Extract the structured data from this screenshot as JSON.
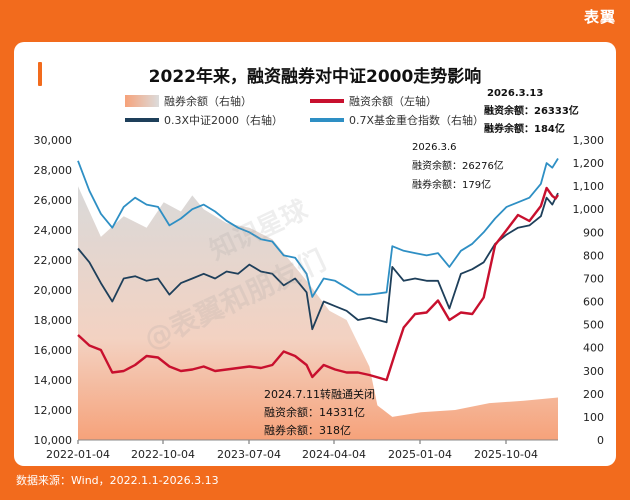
{
  "brand": "表翼",
  "title": "2022年来，融资融券对中证2000走势影响",
  "source": "数据来源：Wind，2022.1.1-2026.3.13",
  "watermark": [
    "知识星球",
    "@表翼和朋友们"
  ],
  "colors": {
    "background": "#f26b1d",
    "financing": "#c8102e",
    "index": "#1e3f5a",
    "fund": "#2e8fc4",
    "securities_top": "#d7d7d7",
    "securities_bottom": "#f6a27a"
  },
  "chart_data": {
    "type": "line",
    "legend": [
      {
        "key": "securities",
        "label": "融券余额（右轴）"
      },
      {
        "key": "financing",
        "label": "融资余额（左轴）"
      },
      {
        "key": "index",
        "label": "0.3X中证2000（右轴）"
      },
      {
        "key": "fund",
        "label": "0.7X基金重仓指数（右轴）"
      }
    ],
    "x_ticks": [
      "2022-01-04",
      "2022-10-04",
      "2023-07-04",
      "2024-04-04",
      "2025-01-04",
      "2025-10-04"
    ],
    "y_left": {
      "ticks": [
        "10,000",
        "12,000",
        "14,000",
        "16,000",
        "18,000",
        "20,000",
        "22,000",
        "24,000",
        "26,000",
        "28,000",
        "30,000"
      ],
      "range": [
        10000,
        30000
      ]
    },
    "y_right": {
      "ticks": [
        "0",
        "100",
        "200",
        "300",
        "400",
        "500",
        "600",
        "700",
        "800",
        "900",
        "1,000",
        "1,100",
        "1,200",
        "1,300"
      ],
      "range": [
        0,
        1300
      ]
    },
    "series": [
      {
        "key": "financing",
        "name": "融资余额（左轴）",
        "axis": "left",
        "values": [
          [
            2022.0,
            17000
          ],
          [
            2022.1,
            16300
          ],
          [
            2022.2,
            16000
          ],
          [
            2022.3,
            14500
          ],
          [
            2022.4,
            14600
          ],
          [
            2022.5,
            15000
          ],
          [
            2022.6,
            15600
          ],
          [
            2022.7,
            15500
          ],
          [
            2022.8,
            14900
          ],
          [
            2022.9,
            14600
          ],
          [
            2023.0,
            14700
          ],
          [
            2023.1,
            14900
          ],
          [
            2023.2,
            14600
          ],
          [
            2023.3,
            14700
          ],
          [
            2023.4,
            14800
          ],
          [
            2023.5,
            14900
          ],
          [
            2023.6,
            14800
          ],
          [
            2023.7,
            15000
          ],
          [
            2023.8,
            15900
          ],
          [
            2023.9,
            15600
          ],
          [
            2024.0,
            15000
          ],
          [
            2024.05,
            14200
          ],
          [
            2024.15,
            15000
          ],
          [
            2024.25,
            14700
          ],
          [
            2024.35,
            14500
          ],
          [
            2024.45,
            14500
          ],
          [
            2024.55,
            14331
          ],
          [
            2024.7,
            14000
          ],
          [
            2024.78,
            15900
          ],
          [
            2024.85,
            17500
          ],
          [
            2024.95,
            18400
          ],
          [
            2025.05,
            18500
          ],
          [
            2025.15,
            19300
          ],
          [
            2025.25,
            18000
          ],
          [
            2025.35,
            18500
          ],
          [
            2025.45,
            18400
          ],
          [
            2025.55,
            19500
          ],
          [
            2025.65,
            23000
          ],
          [
            2025.75,
            24000
          ],
          [
            2025.85,
            25000
          ],
          [
            2025.95,
            24600
          ],
          [
            2026.05,
            25600
          ],
          [
            2026.1,
            26800
          ],
          [
            2026.15,
            26276
          ],
          [
            2026.18,
            26100
          ],
          [
            2026.2,
            26333
          ]
        ]
      },
      {
        "key": "index",
        "name": "0.3X中证2000（右轴）",
        "axis": "right",
        "values": [
          [
            2022.0,
            830
          ],
          [
            2022.1,
            770
          ],
          [
            2022.2,
            680
          ],
          [
            2022.3,
            600
          ],
          [
            2022.4,
            700
          ],
          [
            2022.5,
            710
          ],
          [
            2022.6,
            690
          ],
          [
            2022.7,
            700
          ],
          [
            2022.8,
            630
          ],
          [
            2022.9,
            680
          ],
          [
            2023.0,
            700
          ],
          [
            2023.1,
            720
          ],
          [
            2023.2,
            700
          ],
          [
            2023.3,
            730
          ],
          [
            2023.4,
            720
          ],
          [
            2023.5,
            760
          ],
          [
            2023.6,
            730
          ],
          [
            2023.7,
            720
          ],
          [
            2023.8,
            670
          ],
          [
            2023.9,
            700
          ],
          [
            2024.0,
            640
          ],
          [
            2024.05,
            480
          ],
          [
            2024.15,
            600
          ],
          [
            2024.25,
            580
          ],
          [
            2024.35,
            560
          ],
          [
            2024.45,
            520
          ],
          [
            2024.55,
            530
          ],
          [
            2024.7,
            510
          ],
          [
            2024.75,
            750
          ],
          [
            2024.85,
            690
          ],
          [
            2024.95,
            700
          ],
          [
            2025.05,
            690
          ],
          [
            2025.15,
            690
          ],
          [
            2025.25,
            570
          ],
          [
            2025.35,
            720
          ],
          [
            2025.45,
            740
          ],
          [
            2025.55,
            770
          ],
          [
            2025.65,
            850
          ],
          [
            2025.75,
            890
          ],
          [
            2025.85,
            920
          ],
          [
            2025.95,
            930
          ],
          [
            2026.05,
            970
          ],
          [
            2026.1,
            1050
          ],
          [
            2026.15,
            1020
          ],
          [
            2026.2,
            1070
          ]
        ]
      },
      {
        "key": "fund",
        "name": "0.7X基金重仓指数（右轴）",
        "axis": "right",
        "values": [
          [
            2022.0,
            1210
          ],
          [
            2022.1,
            1080
          ],
          [
            2022.2,
            980
          ],
          [
            2022.3,
            920
          ],
          [
            2022.4,
            1010
          ],
          [
            2022.5,
            1050
          ],
          [
            2022.6,
            1020
          ],
          [
            2022.7,
            1010
          ],
          [
            2022.8,
            930
          ],
          [
            2022.9,
            960
          ],
          [
            2023.0,
            1000
          ],
          [
            2023.1,
            1020
          ],
          [
            2023.2,
            990
          ],
          [
            2023.3,
            950
          ],
          [
            2023.4,
            920
          ],
          [
            2023.5,
            900
          ],
          [
            2023.6,
            870
          ],
          [
            2023.7,
            860
          ],
          [
            2023.8,
            800
          ],
          [
            2023.9,
            790
          ],
          [
            2024.0,
            720
          ],
          [
            2024.05,
            620
          ],
          [
            2024.15,
            700
          ],
          [
            2024.25,
            690
          ],
          [
            2024.35,
            660
          ],
          [
            2024.45,
            630
          ],
          [
            2024.55,
            630
          ],
          [
            2024.7,
            640
          ],
          [
            2024.75,
            840
          ],
          [
            2024.85,
            820
          ],
          [
            2024.95,
            810
          ],
          [
            2025.05,
            800
          ],
          [
            2025.15,
            810
          ],
          [
            2025.25,
            750
          ],
          [
            2025.35,
            820
          ],
          [
            2025.45,
            850
          ],
          [
            2025.55,
            900
          ],
          [
            2025.65,
            960
          ],
          [
            2025.75,
            1010
          ],
          [
            2025.85,
            1030
          ],
          [
            2025.95,
            1050
          ],
          [
            2026.05,
            1110
          ],
          [
            2026.1,
            1200
          ],
          [
            2026.15,
            1180
          ],
          [
            2026.2,
            1220
          ]
        ]
      },
      {
        "key": "securities",
        "name": "融券余额（右轴）",
        "axis": "right",
        "values": [
          [
            2022.0,
            1100
          ],
          [
            2022.2,
            880
          ],
          [
            2022.4,
            970
          ],
          [
            2022.6,
            920
          ],
          [
            2022.75,
            1030
          ],
          [
            2022.9,
            990
          ],
          [
            2023.0,
            1060
          ],
          [
            2023.1,
            1000
          ],
          [
            2023.3,
            940
          ],
          [
            2023.5,
            920
          ],
          [
            2023.7,
            870
          ],
          [
            2023.9,
            750
          ],
          [
            2024.0,
            690
          ],
          [
            2024.2,
            560
          ],
          [
            2024.35,
            520
          ],
          [
            2024.55,
            318
          ],
          [
            2024.62,
            150
          ],
          [
            2024.75,
            100
          ],
          [
            2025.0,
            120
          ],
          [
            2025.3,
            130
          ],
          [
            2025.6,
            160
          ],
          [
            2025.9,
            170
          ],
          [
            2026.2,
            184
          ]
        ]
      }
    ],
    "annotations": {
      "a2024": {
        "date": "2024.7.11转融通关闭",
        "fin": "融资余额：14331亿",
        "sec": "融券余额：318亿"
      },
      "a20263_6": {
        "date": "2026.3.6",
        "fin": "融资余额：26276亿",
        "sec": "融券余额：179亿"
      },
      "a20263_13": {
        "date": "2026.3.13",
        "fin": "融资余额：26333亿",
        "sec": "融券余额：184亿"
      }
    }
  }
}
